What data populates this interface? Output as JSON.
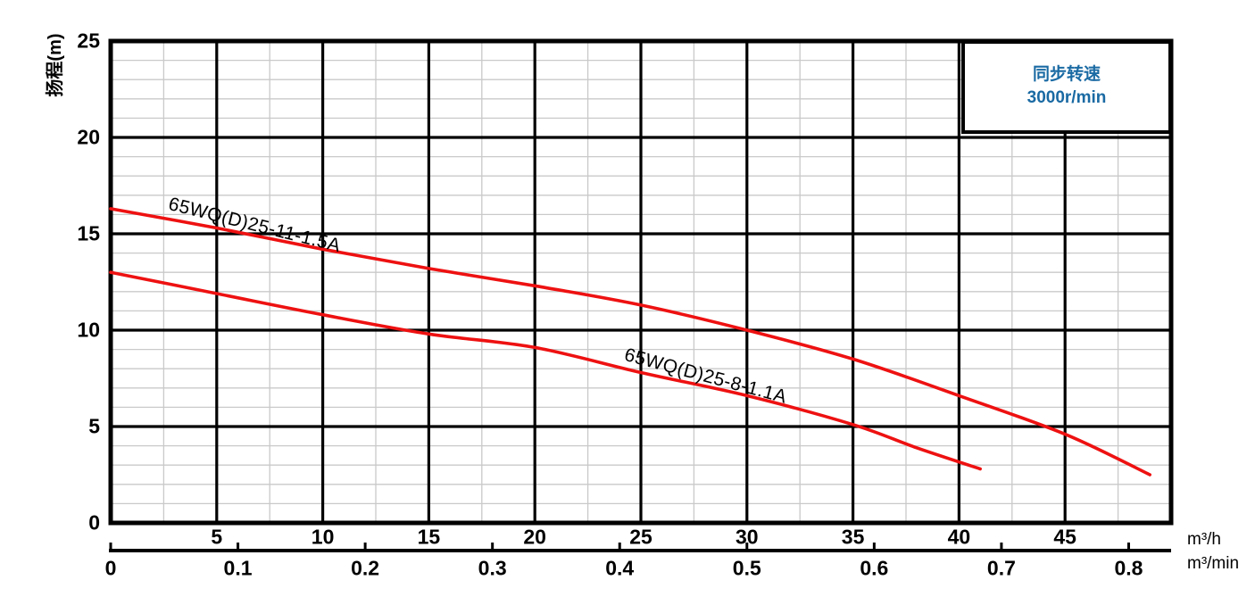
{
  "chart_data": {
    "type": "line",
    "title": "",
    "ylabel": "扬程(m)",
    "x_axis_units": {
      "primary": "m³/h",
      "secondary": "m³/min"
    },
    "xlim_m3h": [
      0,
      50
    ],
    "ylim_m": [
      0,
      25
    ],
    "x_major_ticks_m3h": [
      "5",
      "10",
      "15",
      "20",
      "25",
      "30",
      "35",
      "40",
      "45"
    ],
    "x_ticks_m3min": [
      "0",
      "0.1",
      "0.2",
      "0.3",
      "0.4",
      "0.5",
      "0.6",
      "0.7",
      "0.8"
    ],
    "y_ticks_m": [
      "0",
      "5",
      "10",
      "15",
      "20",
      "25"
    ],
    "grid": {
      "major": true,
      "minor": true,
      "x_minor_step_m3h": 2.5,
      "y_minor_step_m": 1,
      "legend_position": "top-right"
    },
    "series": [
      {
        "name": "65WQ(D)25-11-1.5A",
        "color": "#ee1111",
        "points_q_m3h_head_m": [
          [
            0,
            16.3
          ],
          [
            5,
            15.3
          ],
          [
            10,
            14.2
          ],
          [
            15,
            13.2
          ],
          [
            20,
            12.3
          ],
          [
            25,
            11.3
          ],
          [
            30,
            10.0
          ],
          [
            35,
            8.5
          ],
          [
            40,
            6.6
          ],
          [
            45,
            4.6
          ],
          [
            49,
            2.5
          ]
        ]
      },
      {
        "name": "65WQ(D)25-8-1.1A",
        "color": "#ee1111",
        "points_q_m3h_head_m": [
          [
            0,
            13.0
          ],
          [
            5,
            11.9
          ],
          [
            10,
            10.8
          ],
          [
            15,
            9.8
          ],
          [
            20,
            9.1
          ],
          [
            25,
            7.8
          ],
          [
            30,
            6.6
          ],
          [
            35,
            5.1
          ],
          [
            38,
            3.9
          ],
          [
            41,
            2.8
          ]
        ]
      }
    ],
    "legend": {
      "line1": "同步转速",
      "line2": "3000r/min",
      "text_color": "#1a6aa3"
    },
    "colors": {
      "curve": "#ee1111",
      "grid_minor": "#c9c9c9",
      "grid_major": "#000000",
      "frame": "#000000",
      "background": "#ffffff"
    }
  }
}
